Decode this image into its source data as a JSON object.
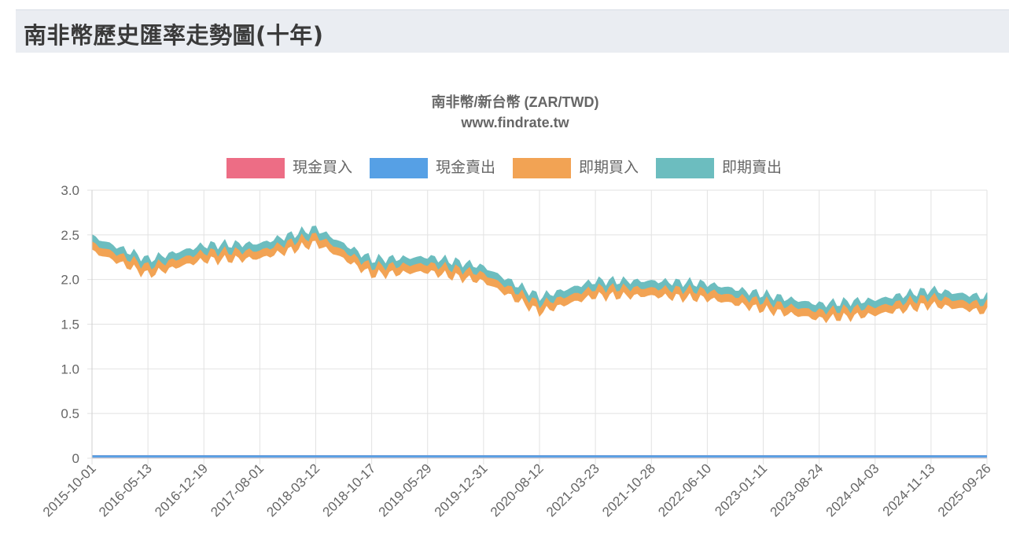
{
  "header": {
    "title": "南非幣歷史匯率走勢圖(十年)"
  },
  "chart_data": {
    "type": "line",
    "title": "南非幣/新台幣 (ZAR/TWD)",
    "subtitle": "www.findrate.tw",
    "x_ticks": [
      "2015-10-01",
      "2016-05-13",
      "2016-12-19",
      "2017-08-01",
      "2018-03-12",
      "2018-10-17",
      "2019-05-29",
      "2019-12-31",
      "2020-08-12",
      "2021-03-23",
      "2021-10-28",
      "2022-06-10",
      "2023-01-11",
      "2023-08-24",
      "2024-04-03",
      "2024-11-13",
      "2025-09-26"
    ],
    "y_ticks": [
      "0",
      "0.5",
      "1.0",
      "1.5",
      "2.0",
      "2.5",
      "3.0"
    ],
    "ylim": [
      0,
      3.0
    ],
    "grid": true,
    "legend_position": "top",
    "colors": {
      "cash_buy": "#ed6d85",
      "cash_sell": "#56a0e5",
      "spot_buy": "#f2a354",
      "spot_sell": "#6cbdbf"
    },
    "series": [
      {
        "name": "現金買入",
        "color": "#ed6d85",
        "values": [
          0.02,
          0.02,
          0.02,
          0.02,
          0.02,
          0.02,
          0.02,
          0.02,
          0.02,
          0.02,
          0.02,
          0.02,
          0.02,
          0.02,
          0.02,
          0.02,
          0.02
        ]
      },
      {
        "name": "現金賣出",
        "color": "#56a0e5",
        "values": [
          0.02,
          0.02,
          0.02,
          0.02,
          0.02,
          0.02,
          0.02,
          0.02,
          0.02,
          0.02,
          0.02,
          0.02,
          0.02,
          0.02,
          0.02,
          0.02,
          0.02
        ]
      },
      {
        "name": "即期買入",
        "color": "#f2a354",
        "values": [
          2.38,
          2.12,
          2.28,
          2.3,
          2.47,
          2.12,
          2.15,
          2.04,
          1.7,
          1.88,
          1.88,
          1.85,
          1.73,
          1.62,
          1.67,
          1.78,
          1.7
        ]
      },
      {
        "name": "即期賣出",
        "color": "#6cbdbf",
        "values": [
          2.46,
          2.2,
          2.36,
          2.38,
          2.55,
          2.2,
          2.23,
          2.12,
          1.78,
          1.96,
          1.96,
          1.93,
          1.81,
          1.7,
          1.75,
          1.86,
          1.78
        ]
      }
    ]
  }
}
